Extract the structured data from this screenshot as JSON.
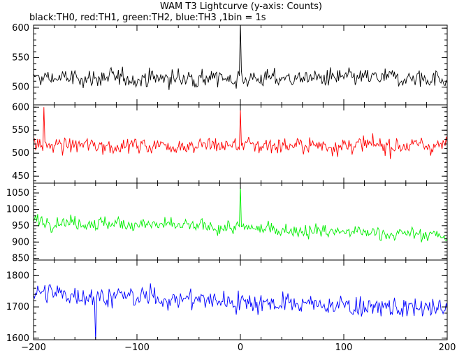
{
  "title": "WAM T3 Lightcurve (y-axis: Counts)",
  "subtitle": "black:TH0, red:TH1, green:TH2, blue:TH3 ,1bin = 1s",
  "chart_data": {
    "type": "line",
    "title": "WAM T3 Lightcurve (y-axis: Counts)",
    "subtitle": "black:TH0, red:TH1, green:TH2, blue:TH3 ,1bin = 1s",
    "xlim": [
      -200,
      200
    ],
    "x_ticks": [
      -200,
      -100,
      0,
      100,
      200
    ],
    "bin_width": 1,
    "panels": [
      {
        "name": "TH0",
        "color": "#000000",
        "ylim": [
          470,
          605
        ],
        "y_ticks": [
          500,
          550,
          600
        ],
        "mean": 515,
        "noise_amplitude": 25,
        "spikes": [
          {
            "x": 0,
            "value": 625
          }
        ]
      },
      {
        "name": "TH1",
        "color": "#ff0000",
        "ylim": [
          435,
          605
        ],
        "y_ticks": [
          450,
          500,
          550,
          600
        ],
        "mean": 517,
        "noise_amplitude": 30,
        "spikes": [
          {
            "x": -190,
            "value": 600
          },
          {
            "x": 0,
            "value": 595
          }
        ]
      },
      {
        "name": "TH2",
        "color": "#00ee00",
        "ylim": [
          845,
          1080
        ],
        "y_ticks": [
          850,
          900,
          950,
          1000,
          1050
        ],
        "trend_start": 965,
        "trend_end": 920,
        "noise_amplitude": 35,
        "spikes": [
          {
            "x": 0,
            "value": 1075
          }
        ]
      },
      {
        "name": "TH3",
        "color": "#0000ff",
        "ylim": [
          1595,
          1850
        ],
        "y_ticks": [
          1600,
          1700,
          1800
        ],
        "trend_start": 1745,
        "trend_end": 1690,
        "noise_amplitude": 55,
        "spikes": [
          {
            "x": -140,
            "value": 1590
          }
        ]
      }
    ]
  }
}
